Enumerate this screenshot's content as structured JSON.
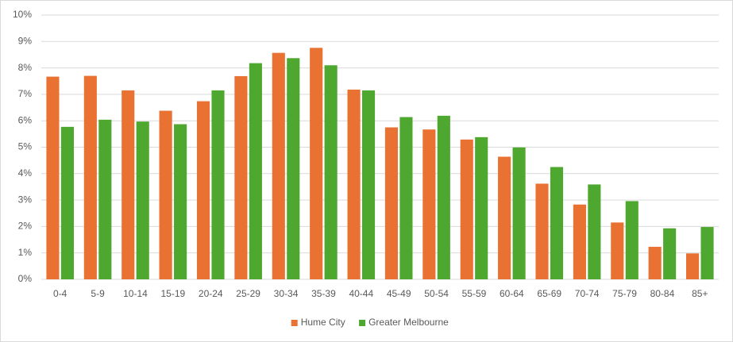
{
  "chart_data": {
    "type": "bar",
    "categories": [
      "0-4",
      "5-9",
      "10-14",
      "15-19",
      "20-24",
      "25-29",
      "30-34",
      "35-39",
      "40-44",
      "45-49",
      "50-54",
      "55-59",
      "60-64",
      "65-69",
      "70-74",
      "75-79",
      "80-84",
      "85+"
    ],
    "series": [
      {
        "name": "Hume City",
        "color": "#e97132",
        "values": [
          7.67,
          7.7,
          7.15,
          6.38,
          6.74,
          7.69,
          8.57,
          8.76,
          7.18,
          5.75,
          5.67,
          5.29,
          4.64,
          3.62,
          2.83,
          2.15,
          1.23,
          0.98
        ]
      },
      {
        "name": "Greater Melbourne",
        "color": "#4ea72e",
        "values": [
          5.77,
          6.04,
          5.97,
          5.87,
          7.15,
          8.18,
          8.37,
          8.1,
          7.15,
          6.14,
          6.19,
          5.38,
          4.99,
          4.25,
          3.59,
          2.96,
          1.93,
          1.98
        ]
      }
    ],
    "ylim": [
      0,
      10
    ],
    "yticks": [
      {
        "value": 0,
        "label": "0%"
      },
      {
        "value": 1,
        "label": "1%"
      },
      {
        "value": 2,
        "label": "2%"
      },
      {
        "value": 3,
        "label": "3%"
      },
      {
        "value": 4,
        "label": "4%"
      },
      {
        "value": 5,
        "label": "5%"
      },
      {
        "value": 6,
        "label": "6%"
      },
      {
        "value": 7,
        "label": "7%"
      },
      {
        "value": 8,
        "label": "8%"
      },
      {
        "value": 9,
        "label": "9%"
      },
      {
        "value": 10,
        "label": "10%"
      }
    ],
    "grid": true,
    "legend": "bottom"
  }
}
